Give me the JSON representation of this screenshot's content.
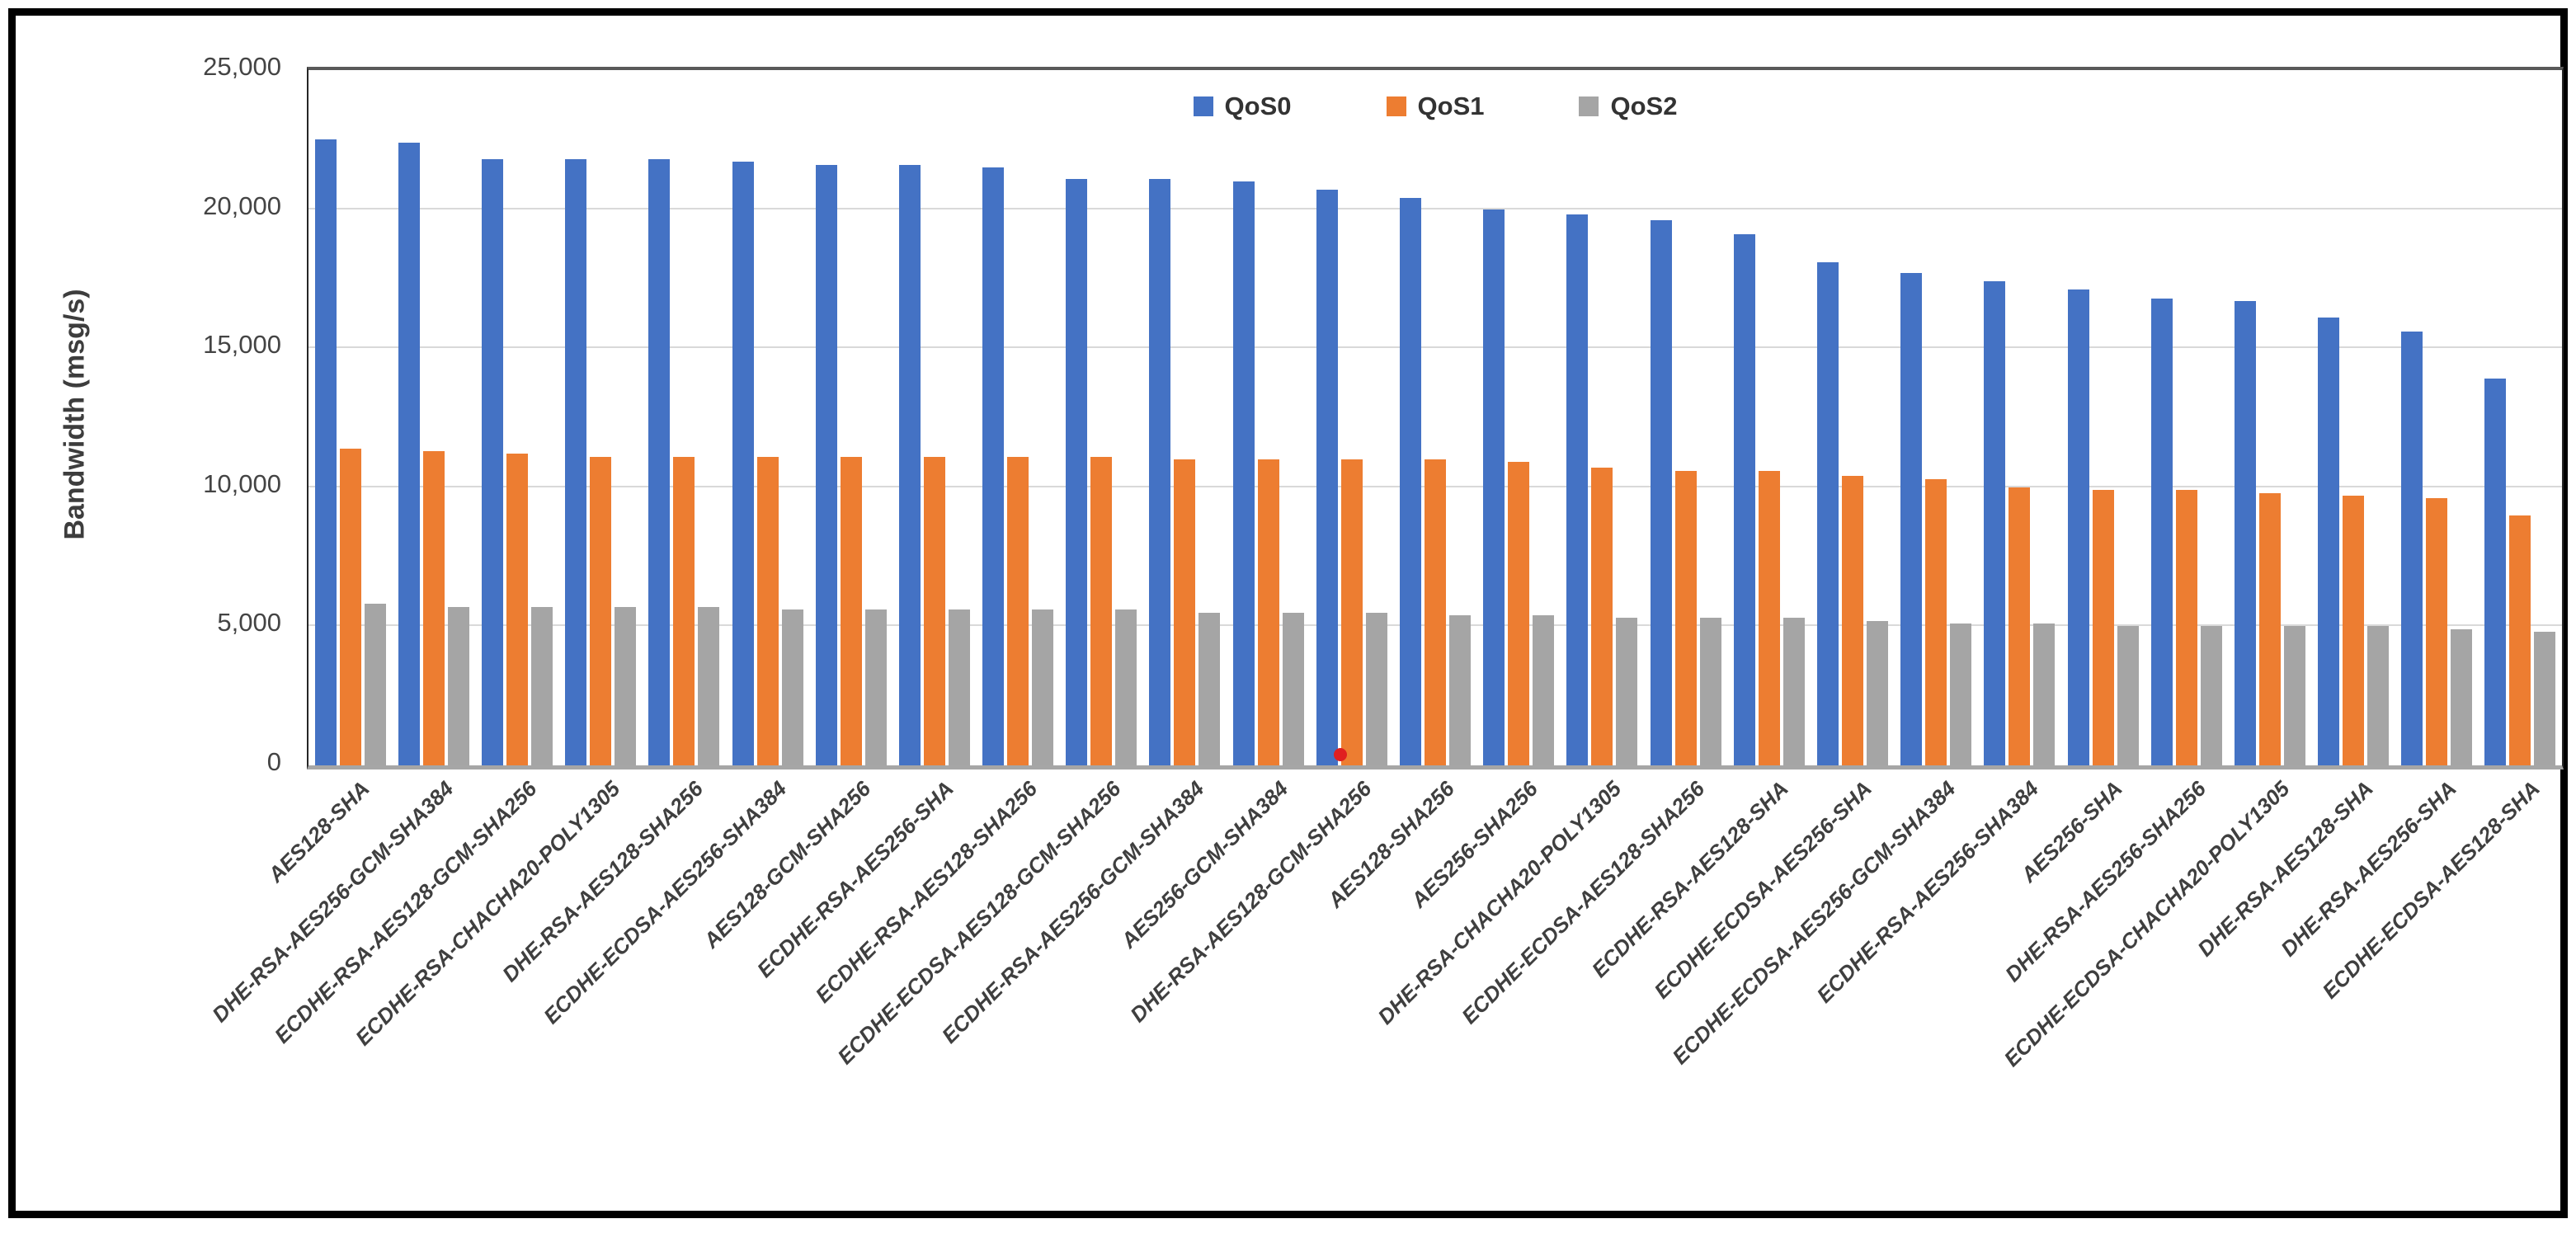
{
  "chart_data": {
    "type": "bar",
    "title": "",
    "xlabel": "",
    "ylabel": "Bandwidth (msg/s)",
    "ylim": [
      0,
      25000
    ],
    "ytick_step": 5000,
    "yticks": [
      {
        "value": 0,
        "label": "0"
      },
      {
        "value": 5000,
        "label": "5,000"
      },
      {
        "value": 10000,
        "label": "10,000"
      },
      {
        "value": 15000,
        "label": "15,000"
      },
      {
        "value": 20000,
        "label": "20,000"
      },
      {
        "value": 25000,
        "label": "25,000"
      }
    ],
    "grid": true,
    "legend_position": "top-center",
    "categories": [
      "AES128-SHA",
      "DHE-RSA-AES256-GCM-SHA384",
      "ECDHE-RSA-AES128-GCM-SHA256",
      "ECDHE-RSA-CHACHA20-POLY1305",
      "DHE-RSA-AES128-SHA256",
      "ECDHE-ECDSA-AES256-SHA384",
      "AES128-GCM-SHA256",
      "ECDHE-RSA-AES256-SHA",
      "ECDHE-RSA-AES128-SHA256",
      "ECDHE-ECDSA-AES128-GCM-SHA256",
      "ECDHE-RSA-AES256-GCM-SHA384",
      "AES256-GCM-SHA384",
      "DHE-RSA-AES128-GCM-SHA256",
      "AES128-SHA256",
      "AES256-SHA256",
      "DHE-RSA-CHACHA20-POLY1305",
      "ECDHE-ECDSA-AES128-SHA256",
      "ECDHE-RSA-AES128-SHA",
      "ECDHE-ECDSA-AES256-SHA",
      "ECDHE-ECDSA-AES256-GCM-SHA384",
      "ECDHE-RSA-AES256-SHA384",
      "AES256-SHA",
      "DHE-RSA-AES256-SHA256",
      "ECDHE-ECDSA-CHACHA20-POLY1305",
      "DHE-RSA-AES128-SHA",
      "DHE-RSA-AES256-SHA",
      "ECDHE-ECDSA-AES128-SHA"
    ],
    "series": [
      {
        "name": "QoS0",
        "color": "#4472C4",
        "values": [
          22500,
          22400,
          21800,
          21800,
          21800,
          21700,
          21600,
          21600,
          21500,
          21100,
          21100,
          21000,
          20700,
          20400,
          20000,
          19800,
          19600,
          19100,
          18100,
          17700,
          17400,
          17100,
          16800,
          16700,
          16100,
          15600,
          13900
        ]
      },
      {
        "name": "QoS1",
        "color": "#ED7D31",
        "values": [
          11400,
          11300,
          11200,
          11100,
          11100,
          11100,
          11100,
          11100,
          11100,
          11100,
          11000,
          11000,
          11000,
          11000,
          10900,
          10700,
          10600,
          10600,
          10400,
          10300,
          10000,
          9900,
          9900,
          9800,
          9700,
          9600,
          9000
        ]
      },
      {
        "name": "QoS2",
        "color": "#A5A5A5",
        "values": [
          5800,
          5700,
          5700,
          5700,
          5700,
          5600,
          5600,
          5600,
          5600,
          5600,
          5500,
          5500,
          5500,
          5400,
          5400,
          5300,
          5300,
          5300,
          5200,
          5100,
          5100,
          5000,
          5000,
          5000,
          5000,
          4900,
          4800
        ]
      }
    ],
    "annotations": [
      {
        "type": "dot",
        "color": "#E02020",
        "category_index": 12,
        "near_series": "QoS1",
        "value": 150
      }
    ]
  },
  "colors": {
    "frame_border": "#000000",
    "plot_border": "#595959",
    "axis_line": "#A6A6A6",
    "gridline": "#D9D9D9",
    "tick_text": "#444444",
    "label_text": "#3F3F3F"
  }
}
